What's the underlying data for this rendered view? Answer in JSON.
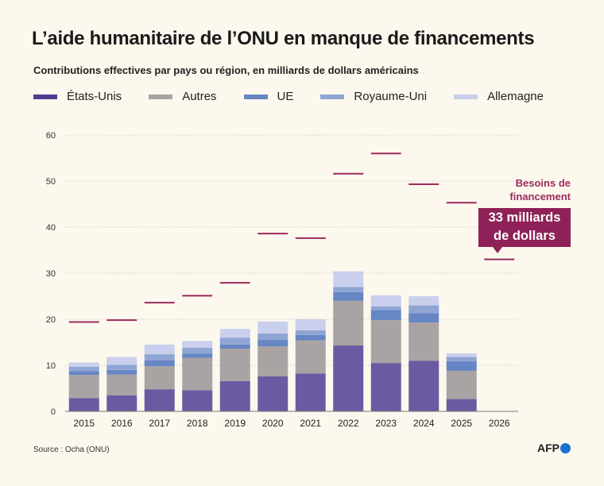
{
  "chart_data": {
    "type": "bar",
    "stacked": true,
    "title": "L’aide humanitaire de l’ONU en manque de financements",
    "subtitle": "Contributions effectives par pays ou région, en milliards de dollars américains",
    "categories": [
      "2015",
      "2016",
      "2017",
      "2018",
      "2019",
      "2020",
      "2021",
      "2022",
      "2023",
      "2024",
      "2025",
      "2026"
    ],
    "ylim": [
      0,
      60
    ],
    "yticks": [
      0,
      10,
      20,
      30,
      40,
      50,
      60
    ],
    "grid": true,
    "legend_position": "top",
    "series": [
      {
        "name": "États-Unis",
        "color": "#6b5aa1",
        "legend_color": "#4d3f8e",
        "values": [
          2.9,
          3.5,
          4.8,
          4.6,
          6.6,
          7.6,
          8.2,
          14.3,
          10.5,
          11.0,
          2.7,
          0
        ]
      },
      {
        "name": "Autres",
        "color": "#aaa3a3",
        "legend_color": "#aaa3a3",
        "values": [
          5.0,
          4.5,
          5.0,
          7.0,
          7.0,
          6.5,
          7.2,
          9.7,
          9.3,
          8.3,
          6.1,
          0
        ]
      },
      {
        "name": "UE",
        "color": "#6686c4",
        "legend_color": "#6686c4",
        "values": [
          0.8,
          1.0,
          1.3,
          0.9,
          0.9,
          1.4,
          1.2,
          1.9,
          2.2,
          2.0,
          2.1,
          0
        ]
      },
      {
        "name": "Royaume-Uni",
        "color": "#8fa5d4",
        "legend_color": "#8fa5d4",
        "values": [
          1.0,
          1.1,
          1.3,
          1.3,
          1.5,
          1.4,
          1.0,
          1.1,
          0.8,
          1.7,
          0.9,
          0
        ]
      },
      {
        "name": "Allemagne",
        "color": "#c9cfec",
        "legend_color": "#c9cfec",
        "values": [
          0.9,
          1.7,
          2.1,
          1.5,
          1.9,
          2.6,
          2.4,
          3.4,
          2.4,
          2.0,
          0.8,
          0
        ]
      }
    ],
    "needs": {
      "color": "#9b2a5e",
      "values": [
        19.4,
        19.8,
        23.6,
        25.1,
        27.9,
        38.6,
        37.6,
        51.6,
        56.0,
        49.3,
        45.3,
        33.0
      ]
    },
    "annotation": {
      "label": "Besoins de financement",
      "label_line1": "Besoins de",
      "label_line2": "financement",
      "box_line1": "33 milliards",
      "box_line2": "de dollars"
    }
  },
  "source": "Source : Ocha (ONU)",
  "logo": "AFP"
}
